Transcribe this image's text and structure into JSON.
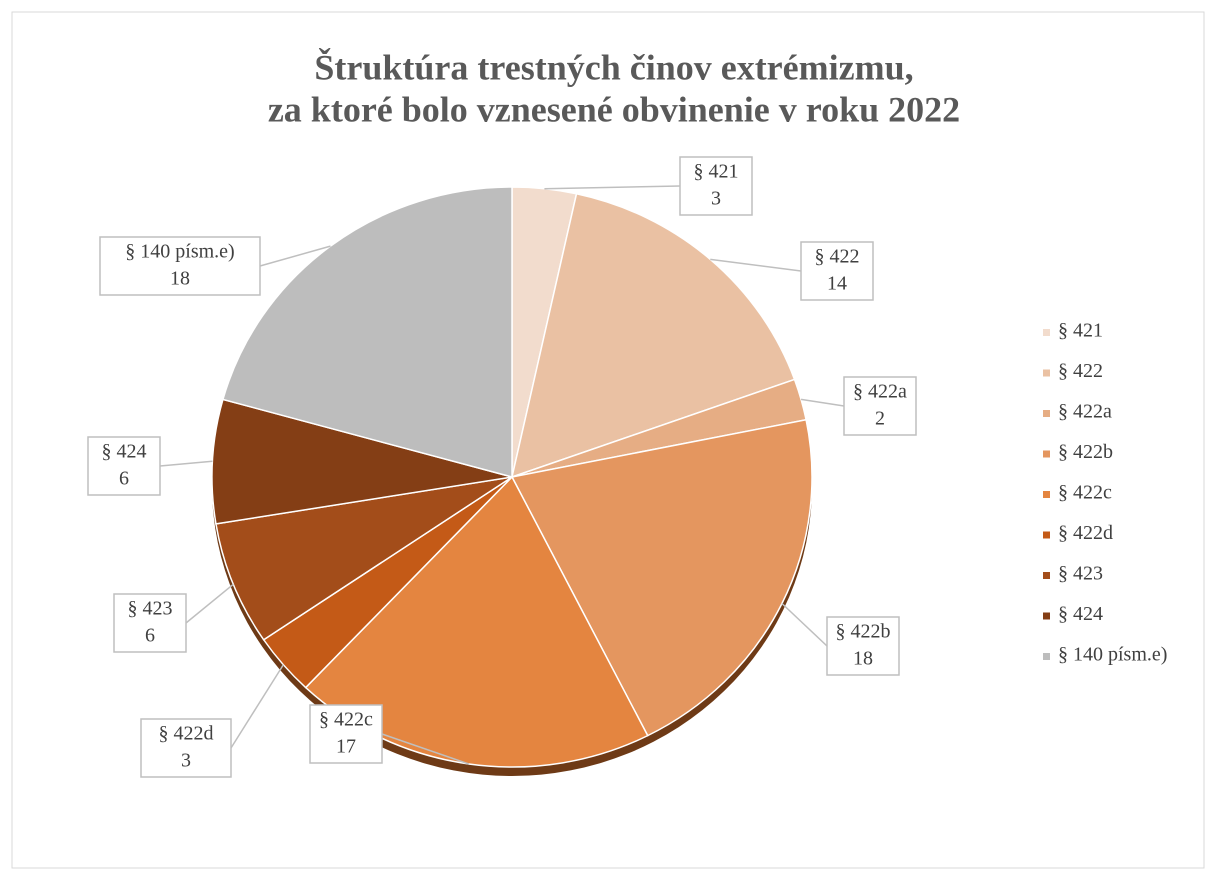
{
  "chart_data": {
    "type": "pie",
    "title": [
      "Štruktúra trestných činov extrémizmu,",
      "za ktoré bolo vznesené obvinenie v roku 2022"
    ],
    "categories": [
      "§ 421",
      "§ 422",
      "§ 422a",
      "§ 422b",
      "§ 422c",
      "§ 422d",
      "§ 423",
      "§ 424",
      "§ 140 písm.e)"
    ],
    "values": [
      3,
      14,
      2,
      18,
      17,
      3,
      6,
      6,
      18
    ],
    "colors": [
      "#f2dccd",
      "#eac1a3",
      "#e6ad84",
      "#e4965f",
      "#e48540",
      "#c45a17",
      "#a34d1a",
      "#843e15",
      "#bdbdbd"
    ],
    "legend": "right"
  }
}
